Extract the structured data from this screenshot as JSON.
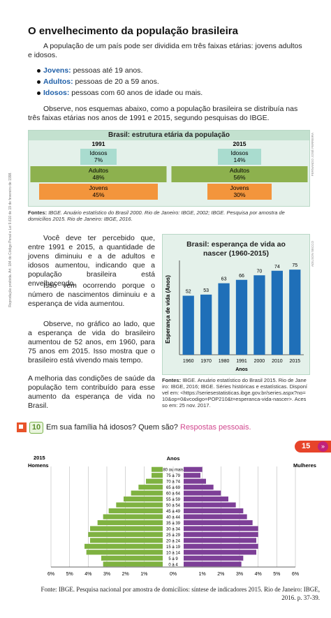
{
  "title": "O envelhecimento da população brasileira",
  "intro": "A população de um país pode ser dividida em três faixas etárias: jovens adultos e idosos.",
  "bullets": [
    {
      "term": "Jovens:",
      "text": "pessoas até 19 anos."
    },
    {
      "term": "Adultos:",
      "text": "pessoas de 20 a 59 anos."
    },
    {
      "term": "Idosos:",
      "text": "pessoas com 60 anos de idade ou mais."
    }
  ],
  "observe": "Observe, nos esquemas abaixo, como a população brasileira se distribuía nas três faixas etárias nos anos de 1991 e 2015, segundo pesquisas do IBGE.",
  "age_structure": {
    "title": "Brasil: estrutura etária da população",
    "credit": "FERNANDO JOSÉ FERREIRA",
    "panels": [
      {
        "year": "1991",
        "groups": [
          {
            "name": "Idosos",
            "share": "7%"
          },
          {
            "name": "Adultos",
            "share": "48%"
          },
          {
            "name": "Jovens",
            "share": "45%"
          }
        ]
      },
      {
        "year": "2015",
        "groups": [
          {
            "name": "Idosos",
            "share": "14%"
          },
          {
            "name": "Adultos",
            "share": "56%"
          },
          {
            "name": "Jovens",
            "share": "30%"
          }
        ]
      }
    ]
  },
  "source1": {
    "label": "Fontes:",
    "text": "IBGE. Anuário estatístico do Brasil 2000. Rio de Janeiro: IBGE, 2002; IBGE. Pesquisa por amostra de domicílios 2015. Rio de Janeiro: IBGE, 2016."
  },
  "body": [
    "Você deve ter percebido que, entre 1991 e 2015, a quantidade de jovens diminuiu e a de adultos e idosos aumentou, indicando que a população brasileira está envelhecendo.",
    "Isso vem ocorrendo porque o número de nascimentos diminuiu e a esperança de vida aumentou.",
    "Observe, no gráfico ao lado, que a esperança de vida do brasileiro aumentou de 52 anos, em 1960, para 75 anos em 2015. Isso mostra que o brasileiro está vivendo mais tempo.",
    "A melhoria das condições de saúde da população tem contribuído para esse aumento da esperança de vida no Brasil."
  ],
  "source2": {
    "label": "Fontes:",
    "text": "IBGE. Anuário estatístico do Brasil 2015. Rio de Janeiro: IBGE, 2016; IBGE. Séries históricas e estatísticas. Disponível em: <https://seriesestatisticas.ibge.gov.br/series.aspx?no=10&op=0&vcodigo=POP210&t=esperanca-vida-nascer>. Acesso em: 25 nov. 2017."
  },
  "activity": {
    "number": "10",
    "question": "Em sua família há idosos? Quem são?",
    "answer": "Respostas pessoais."
  },
  "page_number": "15",
  "copyright": "Reprodução proibida. Art. 184 do Código Penal e Lei 9.610 de 19 de fevereiro de 1998.",
  "chart_data": [
    {
      "type": "bar",
      "title": "Brasil: esperança de vida ao nascer (1960-2015)",
      "credit": "ADILSON SECCO",
      "ylabel": "Esperança de vida (Anos)",
      "xlabel": "Anos",
      "categories": [
        "1960",
        "1970",
        "1980",
        "1991",
        "2000",
        "2010",
        "2015"
      ],
      "values": [
        52,
        53,
        63,
        66,
        70,
        74,
        75
      ],
      "color": "#1f6fb8",
      "ylim": [
        0,
        80
      ]
    },
    {
      "type": "pyramid",
      "year": "2015",
      "center_label": "Anos",
      "categories": [
        "80 ou mais",
        "75 a 79",
        "70 a 74",
        "65 a 69",
        "60 a 64",
        "55 a 59",
        "50 a 54",
        "45 a 49",
        "40 a 44",
        "35 a 39",
        "30 a 34",
        "25 a 29",
        "20 a 24",
        "15 a 19",
        "10 a 14",
        "5 a 9",
        "0 a 4"
      ],
      "series": [
        {
          "name": "Homens",
          "color": "#7fb241",
          "values": [
            0.6,
            0.6,
            0.9,
            1.3,
            1.7,
            2.1,
            2.5,
            2.9,
            3.2,
            3.5,
            3.9,
            4.0,
            3.9,
            4.2,
            4.1,
            3.3,
            3.2
          ]
        },
        {
          "name": "Mulheres",
          "color": "#7d3f97",
          "values": [
            1.0,
            0.9,
            1.2,
            1.6,
            2.0,
            2.4,
            2.8,
            3.2,
            3.4,
            3.7,
            4.0,
            4.0,
            3.9,
            4.0,
            3.9,
            3.2,
            3.1
          ]
        }
      ],
      "xlim": [
        0,
        6
      ],
      "xticks": [
        {
          "value": 6,
          "label": "6%"
        },
        {
          "value": 5,
          "label": "5%"
        },
        {
          "value": 4,
          "label": "4%"
        },
        {
          "value": 3,
          "label": "3%"
        },
        {
          "value": 2,
          "label": "2%"
        },
        {
          "value": 1,
          "label": "1%"
        },
        {
          "value": 0,
          "label": "0%"
        },
        {
          "value": 1,
          "label": "1%"
        },
        {
          "value": 2,
          "label": "2%"
        },
        {
          "value": 3,
          "label": "3%"
        },
        {
          "value": 4,
          "label": "4%"
        },
        {
          "value": 5,
          "label": "5%"
        },
        {
          "value": 6,
          "label": "6%"
        }
      ],
      "grid": true,
      "source": {
        "label": "Fonte:",
        "text": "IBGE. Pesquisa nacional por amostra de domicílios: síntese de indicadores 2015. Rio de Janeiro: IBGE, 2016. p. 37-39."
      }
    }
  ]
}
